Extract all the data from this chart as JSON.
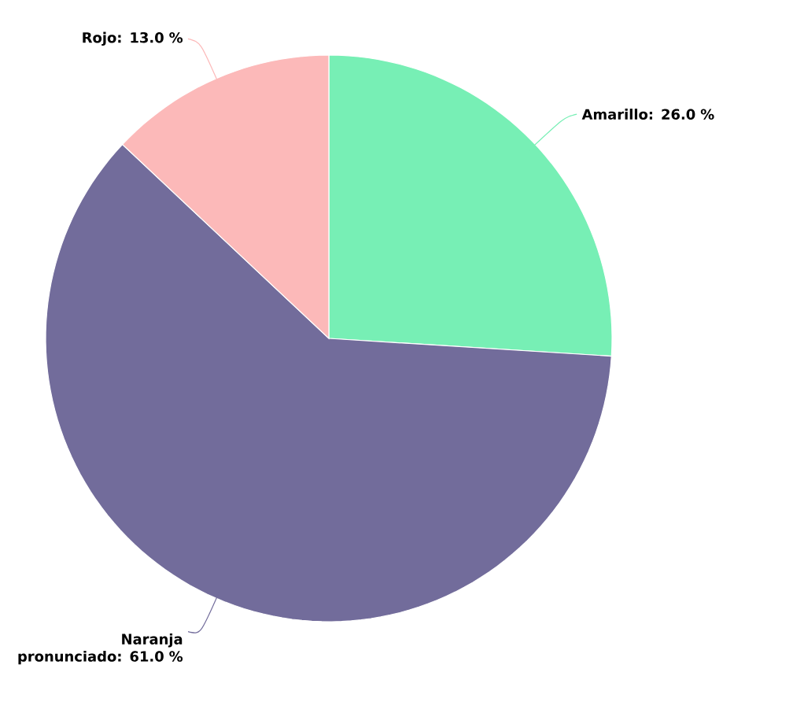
{
  "chart_data": {
    "type": "pie",
    "categories": [
      "Amarillo: 26.0 %",
      "Naranja pronunciado: 61.0 %",
      "Rojo: 13.0 %"
    ],
    "values": [
      26,
      61,
      13
    ],
    "colors": [
      "#77efb5",
      "#726c9b",
      "#fcb9b9"
    ]
  }
}
